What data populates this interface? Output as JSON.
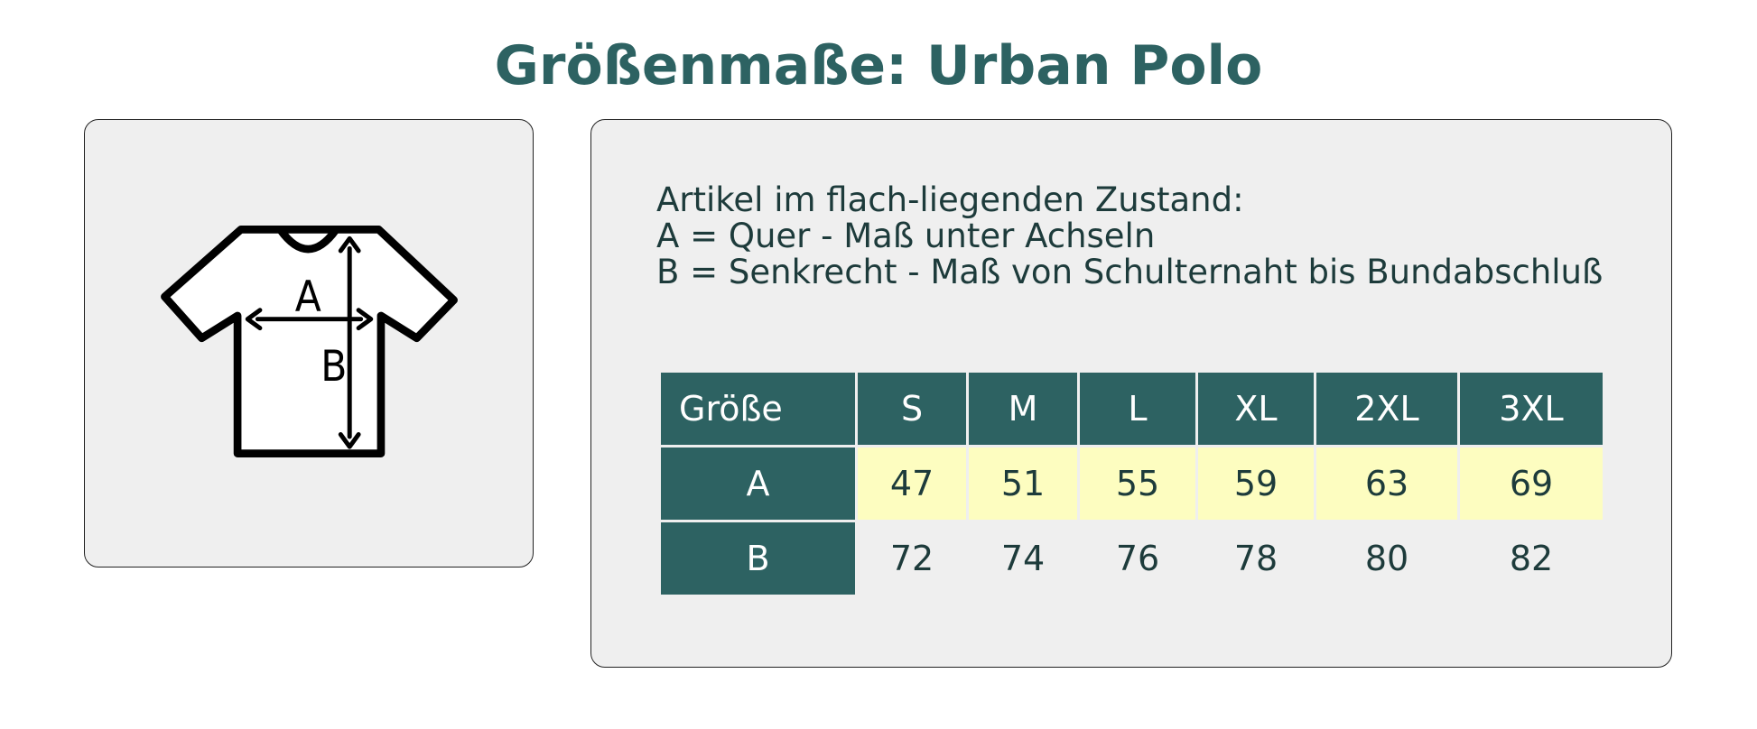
{
  "header": {
    "title": "Größenmaße: Urban Polo"
  },
  "figure": {
    "labels": [
      "A",
      "B"
    ]
  },
  "description": [
    "Artikel im flach-liegenden Zustand:",
    "A = Quer - Maß unter Achseln",
    "B = Senkrecht - Maß von Schulternaht bis Bundabschluß"
  ],
  "table": {
    "header": [
      "Größe",
      "S",
      "M",
      "L",
      "XL",
      "2XL",
      "3XL"
    ],
    "rows": [
      [
        "A",
        47,
        51,
        55,
        59,
        63,
        69
      ],
      [
        "B",
        72,
        74,
        76,
        78,
        80,
        82
      ]
    ]
  }
}
